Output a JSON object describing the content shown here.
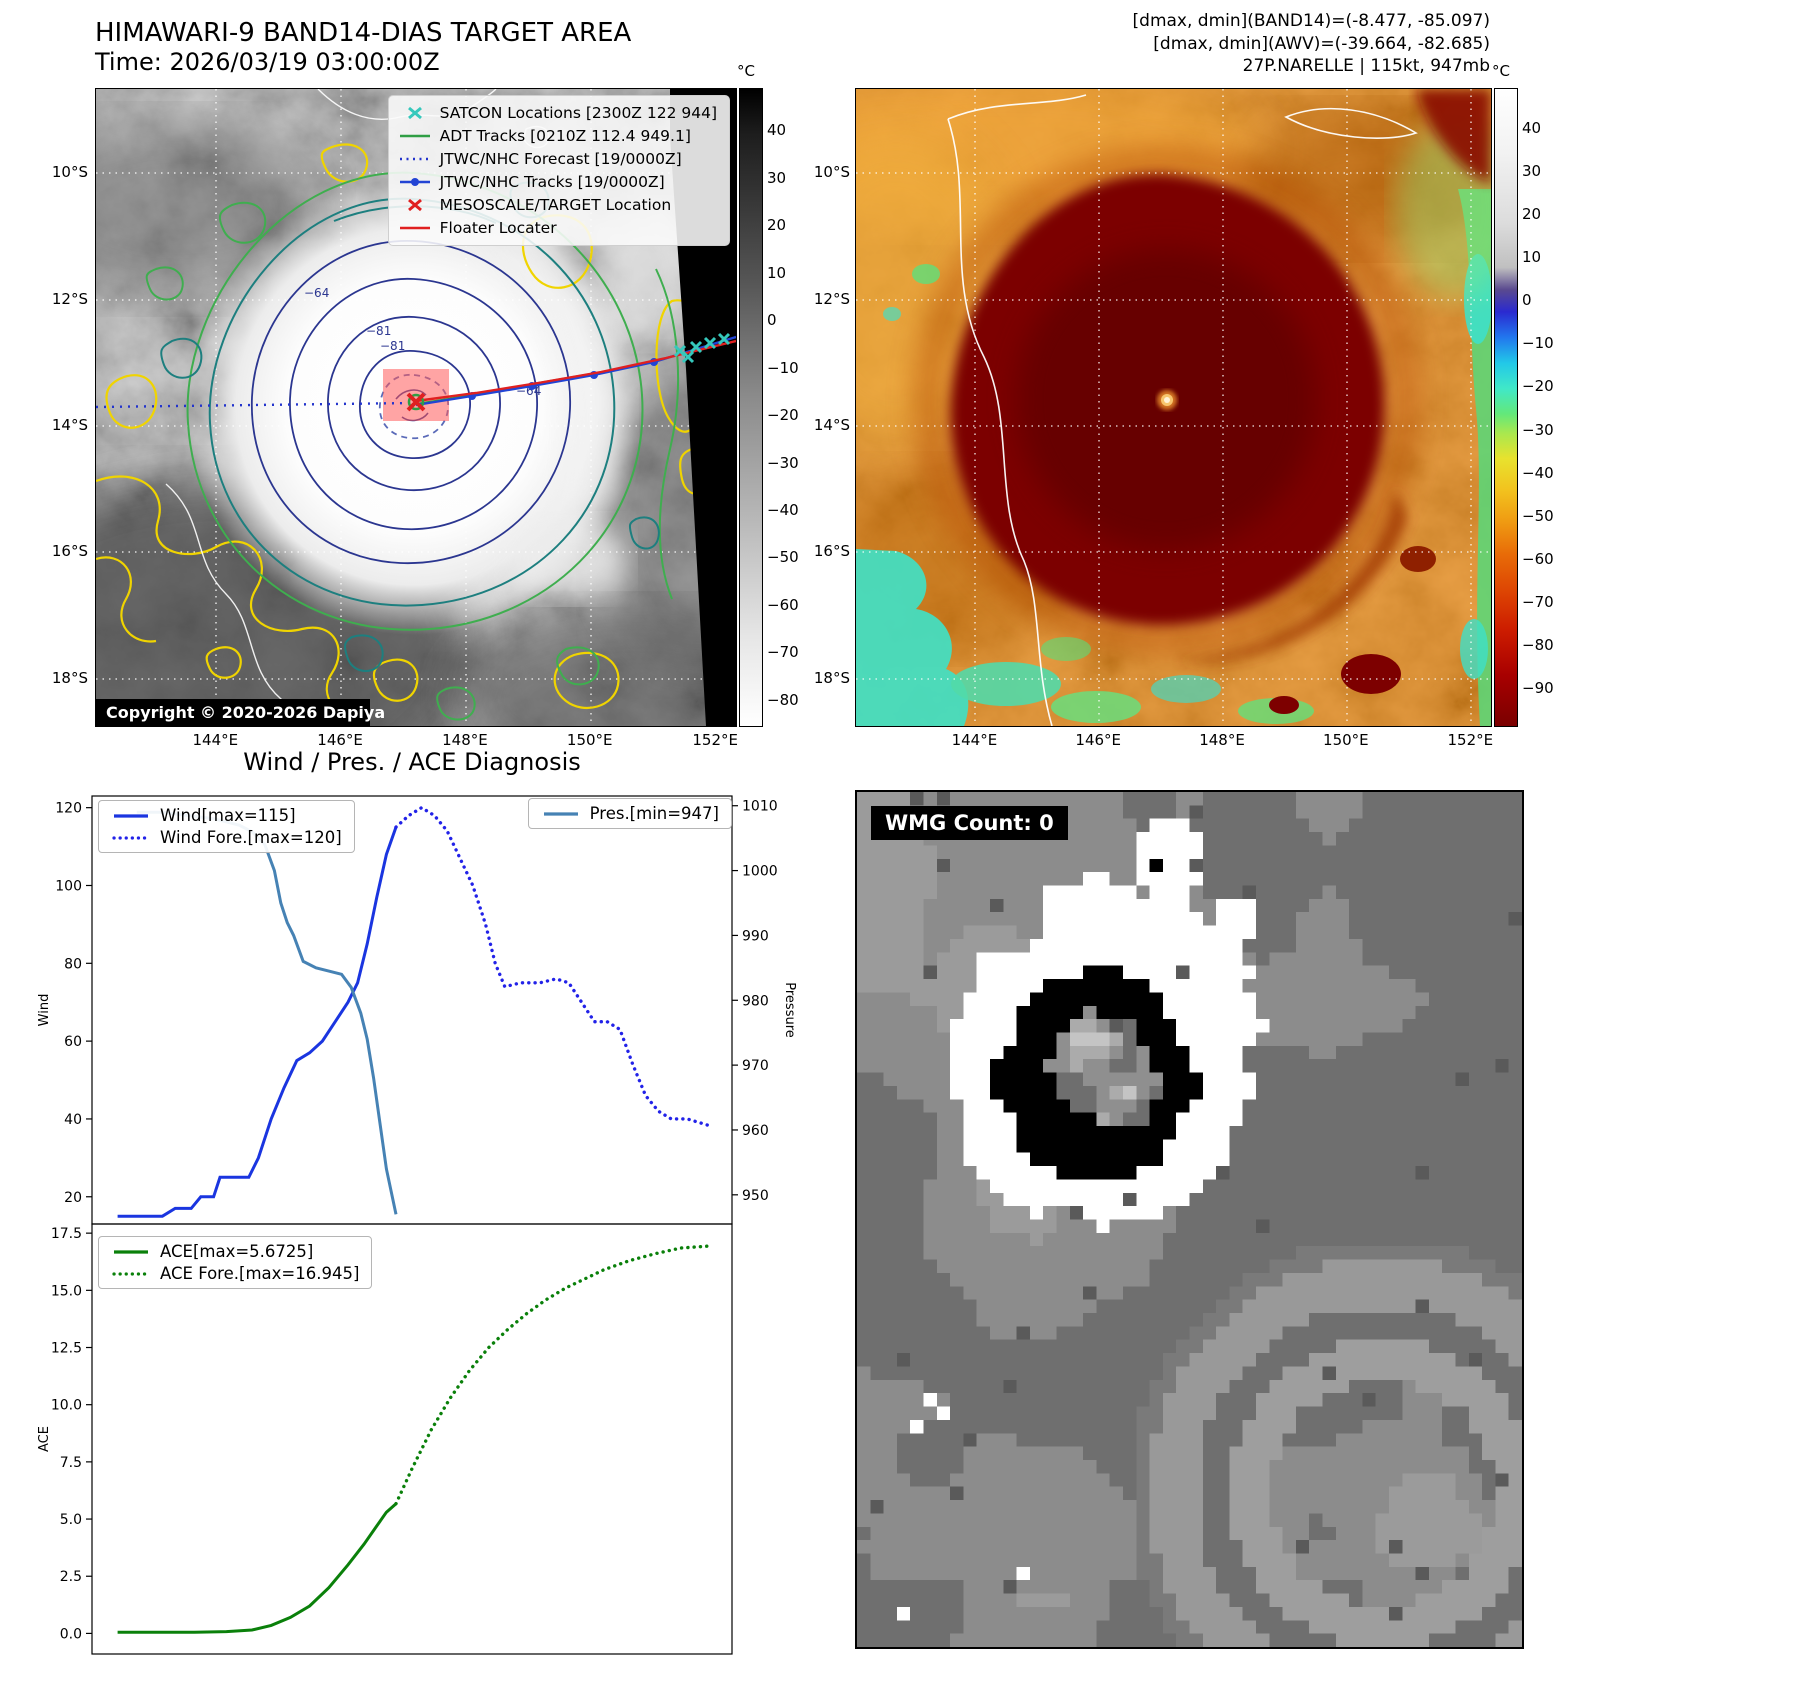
{
  "colors": {
    "satcon": "#35c8bc",
    "adt": "#2f9e44",
    "jtwc_forecast": "#2233cc",
    "jtwc_tracks": "#2244d4",
    "mesoscale": "#e02020",
    "floater": "#e02020",
    "wind": "#1a35e0",
    "wind_forecast": "#2222e8",
    "pressure": "#4682b4",
    "ace": "#0a800a"
  },
  "panels": {
    "band14": {
      "title": "HIMAWARI-9 BAND14-DIAS TARGET AREA",
      "subtitle": "Time: 2026/03/19 03:00:00Z",
      "copyright": "Copyright © 2020-2026 Dapiya",
      "colorbar_unit": "°C",
      "colorbar_ticks": [
        40,
        30,
        20,
        10,
        0,
        -10,
        -20,
        -30,
        -40,
        -50,
        -60,
        -70,
        -80
      ],
      "lat_ticks": [
        "10°S",
        "12°S",
        "14°S",
        "16°S",
        "18°S"
      ],
      "lon_ticks": [
        "144°E",
        "146°E",
        "148°E",
        "150°E",
        "152°E"
      ],
      "contour_labels": [
        "−64",
        "−81",
        "−81",
        "−64"
      ],
      "legend": [
        {
          "marker": "x",
          "color": "#35c8bc",
          "label": "SATCON Locations [2300Z 122 944]"
        },
        {
          "marker": "line",
          "color": "#2f9e44",
          "label": "ADT Tracks [0210Z 112.4 949.1]"
        },
        {
          "marker": "dotted",
          "color": "#2233cc",
          "label": "JTWC/NHC Forecast [19/0000Z]"
        },
        {
          "marker": "line-dot",
          "color": "#2244d4",
          "label": "JTWC/NHC Tracks [19/0000Z]"
        },
        {
          "marker": "x",
          "color": "#e02020",
          "label": "MESOSCALE/TARGET Location"
        },
        {
          "marker": "line",
          "color": "#e02020",
          "label": "Floater Locater"
        }
      ]
    },
    "awv": {
      "header_lines": [
        "[dmax, dmin](BAND14)=(-8.477, -85.097)",
        "[dmax, dmin](AWV)=(-39.664, -82.685)",
        "27P.NARELLE | 115kt, 947mb"
      ],
      "colorbar_unit": "°C",
      "colorbar_ticks": [
        40,
        30,
        20,
        10,
        0,
        -10,
        -20,
        -30,
        -40,
        -50,
        -60,
        -70,
        -80,
        -90
      ],
      "lat_ticks": [
        "10°S",
        "12°S",
        "14°S",
        "16°S",
        "18°S"
      ],
      "lon_ticks": [
        "144°E",
        "146°E",
        "148°E",
        "150°E",
        "152°E"
      ]
    },
    "diagnosis": {
      "title": "Wind / Pres. / ACE Diagnosis"
    },
    "wmg": {
      "label": "WMG Count: 0"
    }
  },
  "chart_data": [
    {
      "type": "line",
      "title": "Wind / Pres. / ACE Diagnosis",
      "ylabel_left": "Wind",
      "ylabel_right": "Pressure",
      "ylim_left": [
        13,
        123
      ],
      "ylim_right": [
        945.5,
        1011.5
      ],
      "yticks_left": [
        20,
        40,
        60,
        80,
        100,
        120
      ],
      "yticks_right": [
        950,
        960,
        970,
        980,
        990,
        1000,
        1010
      ],
      "xlim": [
        0,
        100
      ],
      "grid": false,
      "series": [
        {
          "name": "Wind[max=115]",
          "axis": "left",
          "style": "solid",
          "color": "#1a35e0",
          "x": [
            4,
            11,
            13,
            15.5,
            17,
            19,
            20,
            24.5,
            26,
            28,
            30,
            32,
            34,
            36,
            38,
            40,
            41.5,
            43,
            44.5,
            46,
            47.5
          ],
          "y": [
            15,
            15,
            17,
            17,
            20,
            20,
            25,
            25,
            30,
            40,
            48,
            55,
            57,
            60,
            65,
            70,
            75,
            85,
            97,
            108,
            115
          ]
        },
        {
          "name": "Wind Fore.[max=120]",
          "axis": "left",
          "style": "dotted",
          "color": "#2222e8",
          "x": [
            47.5,
            49.5,
            51.5,
            53.5,
            55.5,
            57.5,
            59.5,
            61.5,
            63,
            64.5,
            67,
            70,
            72.5,
            74.5,
            76.5,
            78.5,
            80.5,
            82.5,
            84.5,
            86.5,
            88.5,
            90.5,
            93,
            95,
            97
          ],
          "y": [
            115,
            118,
            120,
            118,
            114,
            107,
            100,
            90,
            80,
            74,
            75,
            75,
            76,
            75,
            70,
            65,
            65,
            63,
            54,
            46,
            42,
            40,
            40,
            39,
            38
          ]
        },
        {
          "name": "Pres.[min=947]",
          "axis": "right",
          "style": "solid",
          "color": "#4682b4",
          "x": [
            7,
            11,
            15,
            19,
            23,
            25,
            27,
            28.5,
            29.5,
            30.5,
            31.5,
            33,
            35,
            37,
            39,
            40.5,
            42,
            43,
            44,
            45,
            46,
            47.5
          ],
          "y": [
            1009,
            1009,
            1008.5,
            1008,
            1007,
            1006,
            1004,
            1000,
            995,
            992,
            990,
            986,
            985,
            984.5,
            984,
            982,
            978,
            974,
            968,
            961,
            954,
            947
          ]
        }
      ]
    },
    {
      "type": "line",
      "ylabel_left": "ACE",
      "ylim_left": [
        -0.9,
        17.9
      ],
      "yticks_left": [
        "0.0",
        "2.5",
        "5.0",
        "7.5",
        "10.0",
        "12.5",
        "15.0",
        "17.5"
      ],
      "xlim": [
        0,
        100
      ],
      "grid": false,
      "series": [
        {
          "name": "ACE[max=5.6725]",
          "axis": "left",
          "style": "solid",
          "color": "#0a800a",
          "x": [
            4,
            10,
            16,
            21,
            25,
            28,
            31,
            34,
            37,
            40,
            42.5,
            44.5,
            46,
            47.5
          ],
          "y": [
            0.05,
            0.05,
            0.05,
            0.08,
            0.15,
            0.35,
            0.7,
            1.2,
            2.0,
            3.0,
            3.9,
            4.7,
            5.3,
            5.6725
          ]
        },
        {
          "name": "ACE Fore.[max=16.945]",
          "axis": "left",
          "style": "dotted",
          "color": "#0a800a",
          "x": [
            47.5,
            50,
            53,
            56,
            59,
            62,
            65,
            68,
            71,
            74,
            77,
            80,
            84,
            88,
            92,
            97
          ],
          "y": [
            5.6725,
            7.2,
            8.9,
            10.3,
            11.5,
            12.5,
            13.3,
            14.0,
            14.6,
            15.1,
            15.5,
            15.9,
            16.3,
            16.6,
            16.85,
            16.945
          ]
        }
      ]
    }
  ]
}
